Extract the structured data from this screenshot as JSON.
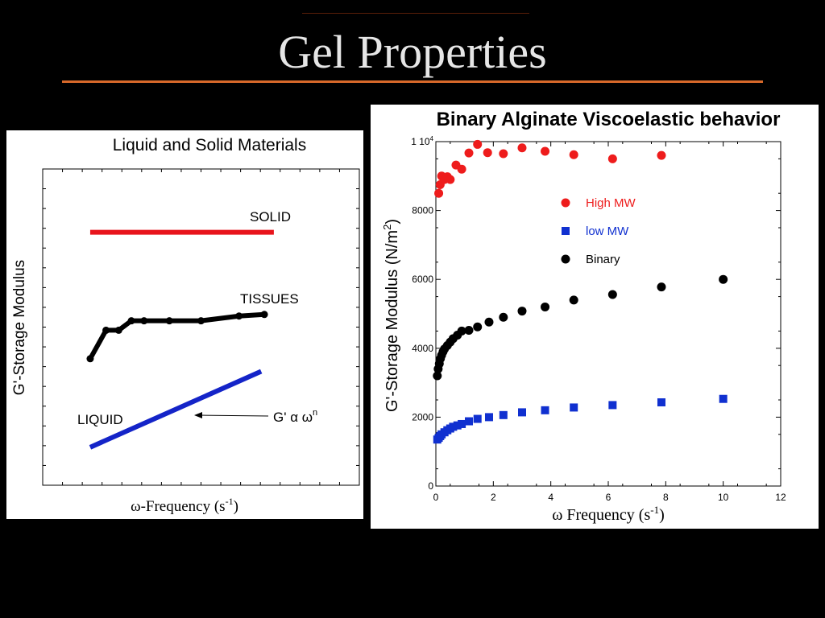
{
  "slide": {
    "title": "Gel Properties"
  },
  "chart_data": [
    {
      "type": "line",
      "title": "Liquid and Solid Materials",
      "xlabel": "ω-Frequency (s",
      "xlabel_sup": "-1",
      "xlabel_close": ")",
      "ylabel": "G'-Storage Modulus",
      "grid": false,
      "axis_ticks": false,
      "series": [
        {
          "name": "SOLID",
          "color": "#e8141c",
          "points": [
            [
              0.15,
              0.8
            ],
            [
              0.73,
              0.8
            ]
          ]
        },
        {
          "name": "TISSUES",
          "color": "#000000",
          "markers": true,
          "points": [
            [
              0.15,
              0.4
            ],
            [
              0.2,
              0.49
            ],
            [
              0.24,
              0.49
            ],
            [
              0.28,
              0.52
            ],
            [
              0.32,
              0.52
            ],
            [
              0.4,
              0.52
            ],
            [
              0.5,
              0.52
            ],
            [
              0.62,
              0.535
            ],
            [
              0.7,
              0.54
            ]
          ]
        },
        {
          "name": "LIQUID",
          "color": "#1424c8",
          "points": [
            [
              0.15,
              0.12
            ],
            [
              0.69,
              0.36
            ]
          ]
        }
      ],
      "annotation": {
        "text": "G' α ω",
        "sup": "n"
      }
    },
    {
      "type": "scatter",
      "title": "Binary Alginate Viscoelastic behavior",
      "xlabel": "ω Frequency (s",
      "xlabel_sup": "-1",
      "xlabel_close": ")",
      "ylabel": "G'-Storage Modulus (N/m",
      "ylabel_sup": "2",
      "ylabel_close": ")",
      "xlim": [
        0,
        12
      ],
      "ylim": [
        0,
        10000
      ],
      "x_ticks": [
        "0",
        "2",
        "4",
        "6",
        "8",
        "10",
        "12"
      ],
      "y_ticks": [
        "0",
        "2000",
        "4000",
        "6000",
        "8000",
        "1 10"
      ],
      "y_top_tick_sup": "4",
      "legend_position": "upper-middle",
      "series": [
        {
          "name": "High MW",
          "marker": "circle",
          "color": "#ee1c1c",
          "x": [
            0.1,
            0.15,
            0.2,
            0.3,
            0.4,
            0.5,
            0.7,
            0.9,
            1.15,
            1.45,
            1.8,
            2.35,
            3.0,
            3.8,
            4.8,
            6.15,
            7.85
          ],
          "y": [
            8500,
            8750,
            9000,
            8900,
            8980,
            8900,
            9320,
            9200,
            9670,
            9920,
            9680,
            9650,
            9820,
            9720,
            9620,
            9500,
            9600
          ]
        },
        {
          "name": "low MW",
          "marker": "square",
          "color": "#1030d0",
          "x": [
            0.05,
            0.1,
            0.15,
            0.2,
            0.3,
            0.4,
            0.5,
            0.6,
            0.75,
            0.9,
            1.15,
            1.45,
            1.85,
            2.35,
            3.0,
            3.8,
            4.8,
            6.15,
            7.85,
            10.0
          ],
          "y": [
            1350,
            1400,
            1450,
            1500,
            1560,
            1620,
            1670,
            1720,
            1760,
            1800,
            1880,
            1950,
            2000,
            2060,
            2140,
            2200,
            2280,
            2350,
            2430,
            2530
          ]
        },
        {
          "name": "Binary",
          "marker": "circle",
          "color": "#000000",
          "x": [
            0.05,
            0.08,
            0.12,
            0.16,
            0.2,
            0.25,
            0.3,
            0.4,
            0.5,
            0.6,
            0.75,
            0.9,
            1.15,
            1.45,
            1.85,
            2.35,
            3.0,
            3.8,
            4.8,
            6.15,
            7.85,
            10.0
          ],
          "y": [
            3200,
            3400,
            3550,
            3700,
            3800,
            3900,
            3980,
            4080,
            4180,
            4280,
            4380,
            4500,
            4520,
            4620,
            4760,
            4900,
            5080,
            5200,
            5400,
            5560,
            5780,
            6000
          ]
        }
      ]
    }
  ]
}
